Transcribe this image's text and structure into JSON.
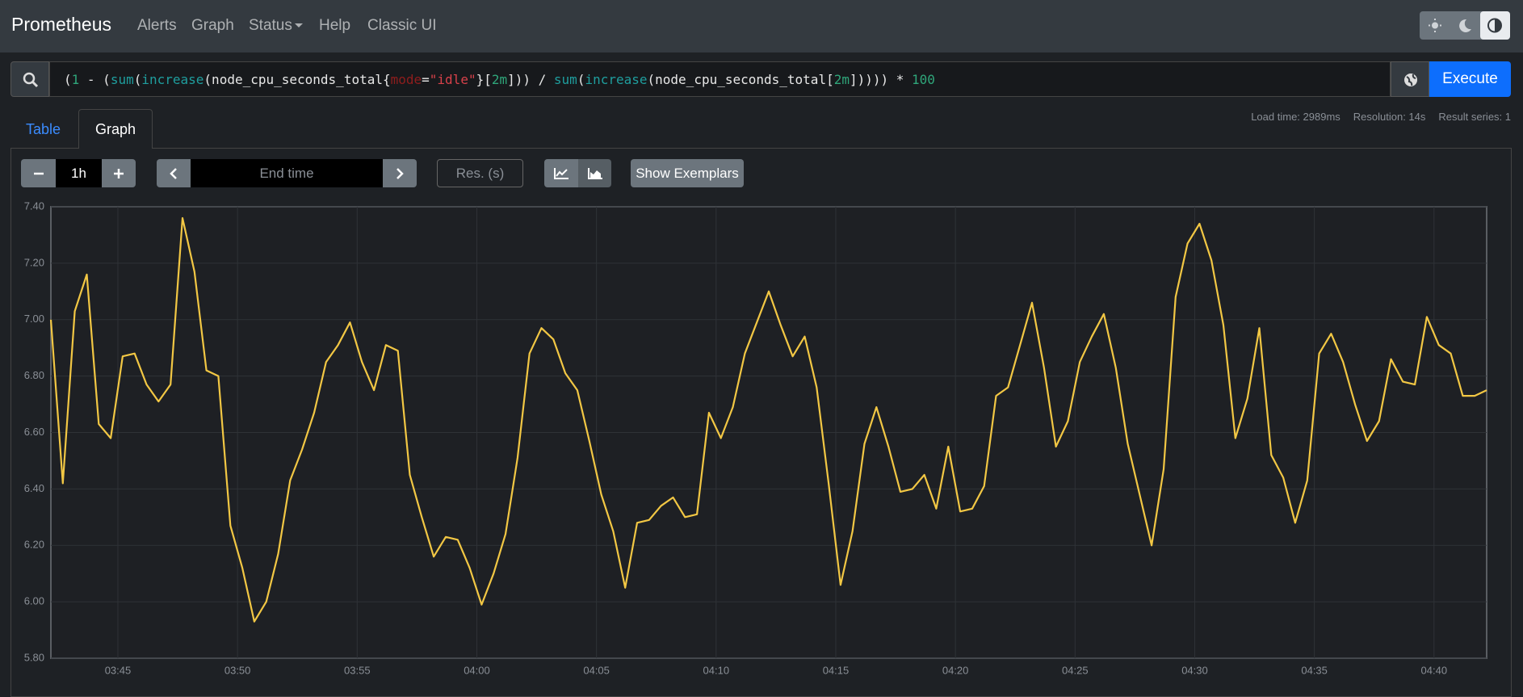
{
  "nav": {
    "brand": "Prometheus",
    "links": [
      "Alerts",
      "Graph",
      "Status",
      "Help",
      "Classic UI"
    ]
  },
  "query": {
    "tokens": [
      {
        "text": "(",
        "color": "#e8e8e8"
      },
      {
        "text": "1",
        "color": "#2fa67a"
      },
      {
        "text": " - (",
        "color": "#e8e8e8"
      },
      {
        "text": "sum",
        "color": "#1f9e9e"
      },
      {
        "text": "(",
        "color": "#e8e8e8"
      },
      {
        "text": "increase",
        "color": "#1f9e9e"
      },
      {
        "text": "(node_cpu_seconds_total{",
        "color": "#e8e8e8"
      },
      {
        "text": "mode",
        "color": "#8f1d1d"
      },
      {
        "text": "=",
        "color": "#e8e8e8"
      },
      {
        "text": "\"idle\"",
        "color": "#d8414a"
      },
      {
        "text": "}[",
        "color": "#e8e8e8"
      },
      {
        "text": "2m",
        "color": "#2fa67a"
      },
      {
        "text": "])) / ",
        "color": "#e8e8e8"
      },
      {
        "text": "sum",
        "color": "#1f9e9e"
      },
      {
        "text": "(",
        "color": "#e8e8e8"
      },
      {
        "text": "increase",
        "color": "#1f9e9e"
      },
      {
        "text": "(node_cpu_seconds_total[",
        "color": "#e8e8e8"
      },
      {
        "text": "2m",
        "color": "#2fa67a"
      },
      {
        "text": "])))) * ",
        "color": "#e8e8e8"
      },
      {
        "text": "100",
        "color": "#2fa67a"
      }
    ],
    "button": "Execute"
  },
  "tabs": [
    "Table",
    "Graph"
  ],
  "stats": [
    "Load time: 2989ms",
    "Resolution: 14s",
    "Result series: 1"
  ],
  "controls": {
    "range": "1h",
    "end_time": "End time",
    "resolution": "Res. (s)",
    "exemplars": "Show Exemplars"
  },
  "chart_data": {
    "type": "line",
    "x": [
      222.2,
      222.7,
      223.2,
      223.7,
      224.2,
      224.7,
      225.2,
      225.7,
      226.2,
      226.7,
      227.2,
      227.7,
      228.2,
      228.7,
      229.2,
      229.7,
      230.2,
      230.7,
      231.2,
      231.7,
      232.2,
      232.7,
      233.2,
      233.7,
      234.2,
      234.7,
      235.2,
      235.7,
      236.2,
      236.7,
      237.2,
      237.7,
      238.2,
      238.7,
      239.2,
      239.7,
      240.2,
      240.7,
      241.2,
      241.7,
      242.2,
      242.7,
      243.2,
      243.7,
      244.2,
      244.7,
      245.2,
      245.7,
      246.2,
      246.7,
      247.2,
      247.7,
      248.2,
      248.7,
      249.2,
      249.7,
      250.2,
      250.7,
      251.2,
      251.7,
      252.2,
      252.7,
      253.2,
      253.7,
      254.2,
      254.7,
      255.2,
      255.7,
      256.2,
      256.7,
      257.2,
      257.7,
      258.2,
      258.7,
      259.2,
      259.7,
      260.2,
      260.7,
      261.2,
      261.7,
      262.2,
      262.7,
      263.2,
      263.7,
      264.2,
      264.7,
      265.2,
      265.7,
      266.2,
      266.7,
      267.2,
      267.7,
      268.2,
      268.7,
      269.2,
      269.7,
      270.2,
      270.7,
      271.2,
      271.7,
      272.2,
      272.7,
      273.2,
      273.7,
      274.2,
      274.7,
      275.2,
      275.7,
      276.2,
      276.7,
      277.2,
      277.7,
      278.2,
      278.7,
      279.2,
      279.7,
      280.2,
      280.7,
      281.2,
      281.7,
      282.2
    ],
    "series": [
      {
        "color": "#f2c744",
        "values": [
          7.0,
          6.42,
          7.03,
          7.16,
          6.63,
          6.58,
          6.87,
          6.88,
          6.77,
          6.71,
          6.77,
          7.36,
          7.17,
          6.82,
          6.8,
          6.27,
          6.12,
          5.93,
          6.0,
          6.17,
          6.43,
          6.54,
          6.67,
          6.85,
          6.91,
          6.99,
          6.85,
          6.75,
          6.91,
          6.89,
          6.45,
          6.3,
          6.16,
          6.23,
          6.22,
          6.12,
          5.99,
          6.1,
          6.24,
          6.51,
          6.88,
          6.97,
          6.93,
          6.81,
          6.75,
          6.57,
          6.38,
          6.25,
          6.05,
          6.28,
          6.29,
          6.34,
          6.37,
          6.3,
          6.31,
          6.67,
          6.58,
          6.69,
          6.88,
          6.99,
          7.1,
          6.98,
          6.87,
          6.94,
          6.76,
          6.42,
          6.06,
          6.25,
          6.56,
          6.69,
          6.55,
          6.39,
          6.4,
          6.45,
          6.33,
          6.55,
          6.32,
          6.33,
          6.41,
          6.73,
          6.76,
          6.91,
          7.06,
          6.83,
          6.55,
          6.64,
          6.85,
          6.94,
          7.02,
          6.83,
          6.56,
          6.38,
          6.2,
          6.47,
          7.08,
          7.27,
          7.34,
          7.21,
          6.98,
          6.58,
          6.72,
          6.97,
          6.52,
          6.44,
          6.28,
          6.43,
          6.88,
          6.95,
          6.85,
          6.7,
          6.57,
          6.64,
          6.86,
          6.78,
          6.77,
          7.01,
          6.91,
          6.88,
          6.73,
          6.73,
          6.75
        ]
      }
    ],
    "xlim": [
      222.2,
      282.2
    ],
    "xticks": [
      {
        "value": 225,
        "label": "03:45"
      },
      {
        "value": 230,
        "label": "03:50"
      },
      {
        "value": 235,
        "label": "03:55"
      },
      {
        "value": 240,
        "label": "04:00"
      },
      {
        "value": 245,
        "label": "04:05"
      },
      {
        "value": 250,
        "label": "04:10"
      },
      {
        "value": 255,
        "label": "04:15"
      },
      {
        "value": 260,
        "label": "04:20"
      },
      {
        "value": 265,
        "label": "04:25"
      },
      {
        "value": 270,
        "label": "04:30"
      },
      {
        "value": 275,
        "label": "04:35"
      },
      {
        "value": 280,
        "label": "04:40"
      }
    ],
    "ylim": [
      5.8,
      7.4
    ],
    "yticks": [
      {
        "value": 5.8,
        "label": "5.80"
      },
      {
        "value": 6.0,
        "label": "6.00"
      },
      {
        "value": 6.2,
        "label": "6.20"
      },
      {
        "value": 6.4,
        "label": "6.40"
      },
      {
        "value": 6.6,
        "label": "6.60"
      },
      {
        "value": 6.8,
        "label": "6.80"
      },
      {
        "value": 7.0,
        "label": "7.00"
      },
      {
        "value": 7.2,
        "label": "7.20"
      },
      {
        "value": 7.4,
        "label": "7.40"
      }
    ],
    "grid": true
  }
}
